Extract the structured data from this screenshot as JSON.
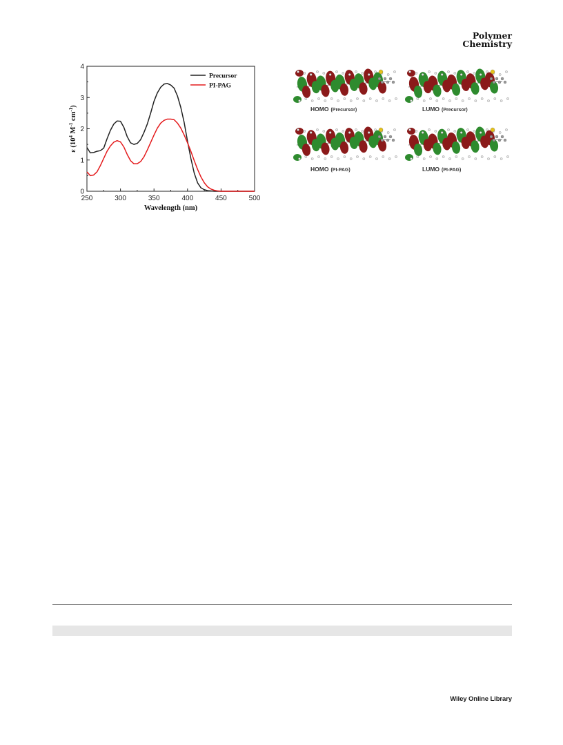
{
  "header": {
    "journal_line1": "Polymer",
    "journal_line2": "Chemistry"
  },
  "chart_data": {
    "type": "line",
    "title": "",
    "xlabel": "Wavelength (nm)",
    "ylabel_parts": [
      "ε (10",
      "4",
      " M",
      "-1",
      " cm",
      "-1",
      ")"
    ],
    "xlim": [
      250,
      500
    ],
    "ylim": [
      0,
      4
    ],
    "xticks": [
      250,
      300,
      350,
      400,
      450,
      500
    ],
    "yticks": [
      0,
      1,
      2,
      3,
      4
    ],
    "legend_position": "top-right",
    "grid": false,
    "series": [
      {
        "name": "Precursor",
        "color": "#222222",
        "x": [
          250,
          255,
          260,
          265,
          270,
          275,
          280,
          285,
          290,
          295,
          300,
          305,
          310,
          315,
          320,
          325,
          330,
          335,
          340,
          345,
          350,
          355,
          360,
          365,
          370,
          375,
          380,
          385,
          390,
          395,
          400,
          405,
          410,
          415,
          420,
          425,
          430,
          440,
          450,
          500
        ],
        "y": [
          1.4,
          1.23,
          1.24,
          1.28,
          1.3,
          1.38,
          1.68,
          1.95,
          2.15,
          2.25,
          2.24,
          2.05,
          1.75,
          1.55,
          1.5,
          1.53,
          1.65,
          1.88,
          2.15,
          2.5,
          2.88,
          3.15,
          3.33,
          3.43,
          3.45,
          3.4,
          3.3,
          3.05,
          2.68,
          2.2,
          1.6,
          1.05,
          0.58,
          0.27,
          0.11,
          0.05,
          0.02,
          0.0,
          0.0,
          0.0
        ]
      },
      {
        "name": "PI-PAG",
        "color": "#e41a1c",
        "x": [
          250,
          255,
          260,
          265,
          270,
          275,
          280,
          285,
          290,
          295,
          300,
          305,
          310,
          315,
          320,
          325,
          330,
          335,
          340,
          345,
          350,
          355,
          360,
          365,
          370,
          375,
          380,
          385,
          390,
          395,
          400,
          405,
          410,
          415,
          420,
          425,
          430,
          435,
          440,
          445,
          450,
          460,
          500
        ],
        "y": [
          0.62,
          0.5,
          0.52,
          0.62,
          0.82,
          1.05,
          1.28,
          1.45,
          1.57,
          1.62,
          1.58,
          1.42,
          1.18,
          0.98,
          0.88,
          0.88,
          0.95,
          1.1,
          1.32,
          1.56,
          1.8,
          2.02,
          2.18,
          2.27,
          2.31,
          2.31,
          2.29,
          2.18,
          2.02,
          1.8,
          1.55,
          1.28,
          0.98,
          0.7,
          0.46,
          0.27,
          0.14,
          0.07,
          0.03,
          0.01,
          0.0,
          0.0,
          0.0
        ]
      }
    ]
  },
  "orbitals": {
    "panels": [
      {
        "label_main": "HOMO",
        "label_sub": "(Precursor)"
      },
      {
        "label_main": "LUMO",
        "label_sub": "(Precursor)"
      },
      {
        "label_main": "HOMO",
        "label_sub": "(PI-PAG)"
      },
      {
        "label_main": "LUMO",
        "label_sub": "(PI-PAG)"
      }
    ],
    "lobe_colors": {
      "positive": "#8b1a1a",
      "negative": "#2e8b2e"
    }
  },
  "footer": {
    "publisher": "Wiley Online Library"
  }
}
